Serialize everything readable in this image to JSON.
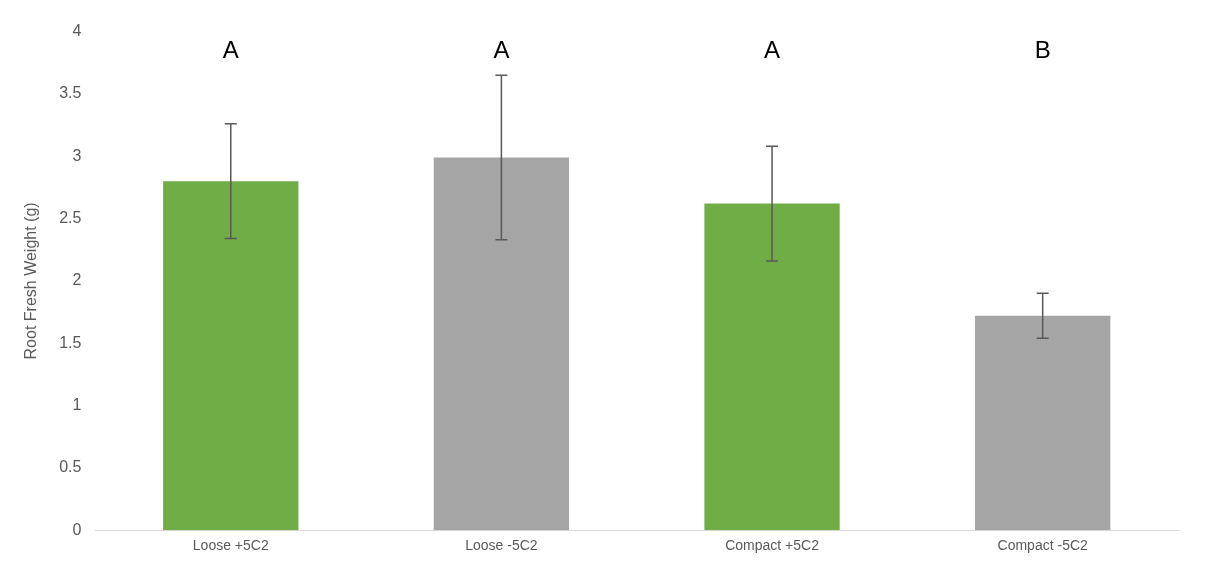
{
  "chart_data": {
    "type": "bar",
    "ylabel": "Root Fresh Weight (g)",
    "categories": [
      "Loose +5C2",
      "Loose -5C2",
      "Compact +5C2",
      "Compact -5C2"
    ],
    "values": [
      2.8,
      2.99,
      2.62,
      1.72
    ],
    "errors": [
      0.46,
      0.66,
      0.46,
      0.18
    ],
    "colors": [
      "#70ad47",
      "#a5a5a5",
      "#70ad47",
      "#a5a5a5"
    ],
    "ylim": [
      0,
      4
    ],
    "yticks": [
      0,
      0.5,
      1,
      1.5,
      2,
      2.5,
      3,
      3.5,
      4
    ],
    "grid": false,
    "legend": false,
    "annotations": [
      "A",
      "A",
      "A",
      "B"
    ]
  }
}
